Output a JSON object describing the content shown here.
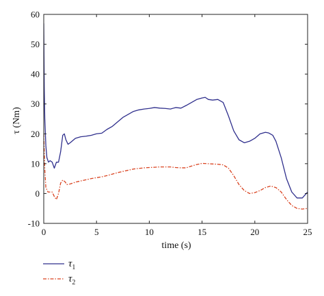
{
  "chart_data": {
    "type": "line",
    "title": "",
    "xlabel": "time (s)",
    "ylabel": "τ (Nm)",
    "xlim": [
      0,
      25
    ],
    "ylim": [
      -10,
      60
    ],
    "xticks": [
      0,
      5,
      10,
      15,
      20,
      25
    ],
    "yticks": [
      -10,
      0,
      10,
      20,
      30,
      40,
      50,
      60
    ],
    "grid": false,
    "legend_position": "below-left",
    "series": [
      {
        "name": "τ1",
        "name_base": "τ",
        "name_sub": "1",
        "color": "#2e2e8c",
        "style": "solid",
        "x": [
          0,
          0.05,
          0.1,
          0.2,
          0.3,
          0.45,
          0.6,
          0.8,
          1.0,
          1.2,
          1.4,
          1.6,
          1.8,
          1.95,
          2.1,
          2.3,
          2.5,
          3,
          3.5,
          4,
          4.5,
          5,
          5.5,
          6,
          6.5,
          7,
          7.5,
          8,
          8.5,
          9,
          9.5,
          10,
          10.5,
          11,
          11.5,
          12,
          12.5,
          13,
          13.5,
          14,
          14.5,
          15,
          15.3,
          15.6,
          16,
          16.5,
          17,
          17.5,
          18,
          18.5,
          19,
          19.5,
          20,
          20.5,
          21,
          21.3,
          21.7,
          22,
          22.5,
          23,
          23.5,
          24,
          24.5,
          25
        ],
        "y": [
          57,
          35,
          25,
          16,
          12,
          10.5,
          11,
          10.5,
          8.5,
          10.5,
          10.5,
          14,
          19.5,
          20,
          18,
          16.5,
          17,
          18.5,
          19,
          19.2,
          19.5,
          20,
          20.2,
          21.5,
          22.5,
          24,
          25.5,
          26.5,
          27.5,
          28,
          28.3,
          28.5,
          28.8,
          28.6,
          28.5,
          28.3,
          28.8,
          28.6,
          29.5,
          30.5,
          31.5,
          32,
          32.2,
          31.5,
          31.3,
          31.5,
          30.5,
          26,
          21,
          18,
          17,
          17.5,
          18.5,
          20,
          20.5,
          20.3,
          19.5,
          17.5,
          12,
          5,
          0.5,
          -1.5,
          -1.5,
          0.5
        ]
      },
      {
        "name": "τ2",
        "name_base": "τ",
        "name_sub": "2",
        "color": "#d9411e",
        "style": "dashdot",
        "x": [
          0,
          0.1,
          0.2,
          0.4,
          0.6,
          0.8,
          1.0,
          1.2,
          1.4,
          1.6,
          1.8,
          2.0,
          2.2,
          2.5,
          3,
          3.5,
          4,
          4.5,
          5,
          5.5,
          6,
          6.5,
          7,
          7.5,
          8,
          8.5,
          9,
          9.5,
          10,
          10.5,
          11,
          11.5,
          12,
          12.5,
          13,
          13.5,
          14,
          14.5,
          15,
          15.5,
          16,
          16.5,
          17,
          17.5,
          18,
          18.5,
          19,
          19.5,
          20,
          20.5,
          21,
          21.5,
          22,
          22.5,
          23,
          23.5,
          24,
          24.5,
          25
        ],
        "y": [
          20,
          8,
          2,
          0.5,
          0.5,
          0.5,
          -1,
          -2,
          0,
          3.5,
          4.5,
          4,
          3,
          3.2,
          3.8,
          4.2,
          4.6,
          5,
          5.3,
          5.6,
          6,
          6.5,
          7,
          7.4,
          7.8,
          8.2,
          8.4,
          8.6,
          8.7,
          8.8,
          8.9,
          8.9,
          8.9,
          8.7,
          8.6,
          8.6,
          9.2,
          9.7,
          10.1,
          10,
          9.9,
          9.8,
          9.6,
          8.5,
          6,
          3,
          1,
          0,
          0.3,
          1,
          2,
          2.5,
          2,
          0.5,
          -2,
          -4,
          -5,
          -5.2,
          -5
        ]
      }
    ]
  }
}
